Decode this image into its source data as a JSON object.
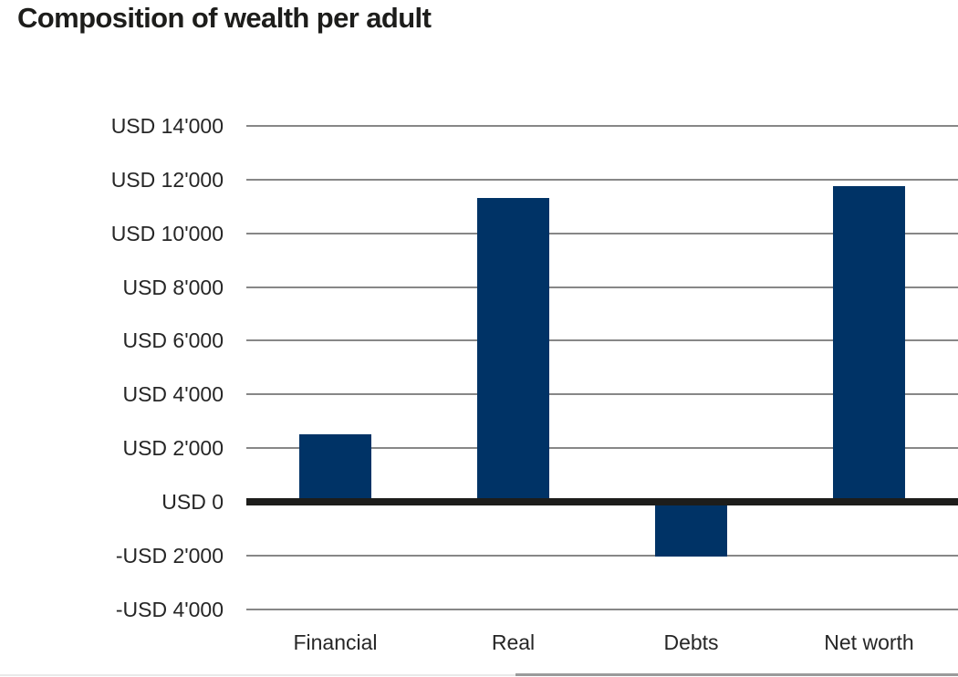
{
  "chart_data": {
    "type": "bar",
    "title": "Composition of wealth per adult",
    "categories": [
      "Financial",
      "Real",
      "Debts",
      "Net worth"
    ],
    "values": [
      2500,
      11300,
      -2050,
      11750
    ],
    "value_unit": "USD",
    "yticks": [
      {
        "label": "USD 14'000",
        "value": 14000
      },
      {
        "label": "USD 12'000",
        "value": 12000
      },
      {
        "label": "USD 10'000",
        "value": 10000
      },
      {
        "label": "USD 8'000",
        "value": 8000
      },
      {
        "label": "USD 6'000",
        "value": 6000
      },
      {
        "label": "USD 4'000",
        "value": 4000
      },
      {
        "label": "USD 2'000",
        "value": 2000
      },
      {
        "label": "USD 0",
        "value": 0
      },
      {
        "label": "-USD 2'000",
        "value": -2000
      },
      {
        "label": "-USD 4'000",
        "value": -4000
      }
    ],
    "ylim": [
      -4000,
      14000
    ],
    "xlabel": "",
    "ylabel": "",
    "grid": true,
    "legend": false,
    "zero_baseline": true,
    "colors": {
      "bar": "#003366",
      "gridline": "#878787",
      "zero_line": "#1d1d1b",
      "title_text": "#1d1d1b",
      "axis_text": "#262626",
      "background": "#ffffff"
    }
  }
}
